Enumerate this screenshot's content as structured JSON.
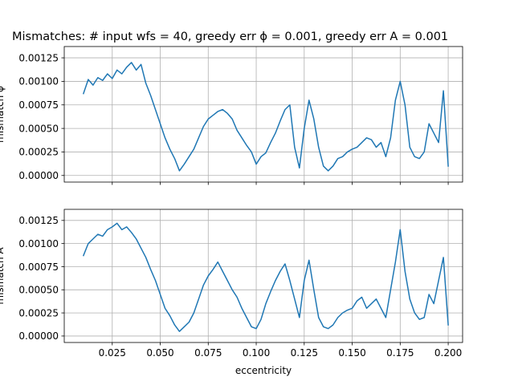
{
  "figure": {
    "title": "Mismatches: # input wfs = 40, greedy err ϕ = 0.001, greedy err A = 0.001"
  },
  "chart_data": [
    {
      "type": "line",
      "title": "Mismatches: # input wfs = 40, greedy err ϕ = 0.001, greedy err A = 0.001",
      "xlabel": "",
      "ylabel": "mismatch ϕ",
      "xlim": [
        0.0,
        0.2075
      ],
      "ylim": [
        -7e-05,
        0.00137
      ],
      "x_ticks": [
        0.025,
        0.05,
        0.075,
        0.1,
        0.125,
        0.15,
        0.175,
        0.2
      ],
      "x_ticklabels_visible": false,
      "y_ticks": [
        0.0,
        0.00025,
        0.0005,
        0.00075,
        0.001,
        0.00125
      ],
      "y_ticklabels": [
        "0.00000",
        "0.00025",
        "0.00050",
        "0.00075",
        "0.00100",
        "0.00125"
      ],
      "grid": true,
      "series": [
        {
          "color": "#1f77b4",
          "x": [
            0.01,
            0.0125,
            0.015,
            0.0175,
            0.02,
            0.0225,
            0.025,
            0.0275,
            0.03,
            0.0325,
            0.035,
            0.0375,
            0.04,
            0.0425,
            0.045,
            0.0475,
            0.05,
            0.0525,
            0.055,
            0.0575,
            0.06,
            0.0625,
            0.065,
            0.0675,
            0.07,
            0.0725,
            0.075,
            0.0775,
            0.08,
            0.0825,
            0.085,
            0.0875,
            0.09,
            0.0925,
            0.095,
            0.0975,
            0.1,
            0.1025,
            0.105,
            0.1075,
            0.11,
            0.1125,
            0.115,
            0.1175,
            0.12,
            0.1225,
            0.125,
            0.1275,
            0.13,
            0.1325,
            0.135,
            0.1375,
            0.14,
            0.1425,
            0.145,
            0.1475,
            0.15,
            0.1525,
            0.155,
            0.1575,
            0.16,
            0.1625,
            0.165,
            0.1675,
            0.17,
            0.1725,
            0.175,
            0.1775,
            0.18,
            0.1825,
            0.185,
            0.1875,
            0.19,
            0.1925,
            0.195,
            0.1975,
            0.2
          ],
          "y": [
            0.00087,
            0.00102,
            0.00096,
            0.00104,
            0.00101,
            0.00108,
            0.00103,
            0.00112,
            0.00108,
            0.00115,
            0.0012,
            0.00112,
            0.00118,
            0.00098,
            0.00085,
            0.0007,
            0.00055,
            0.0004,
            0.00028,
            0.00018,
            5e-05,
            0.00012,
            0.0002,
            0.00028,
            0.0004,
            0.00052,
            0.0006,
            0.00064,
            0.00068,
            0.0007,
            0.00066,
            0.0006,
            0.00048,
            0.0004,
            0.00032,
            0.00025,
            0.00012,
            0.0002,
            0.00024,
            0.00035,
            0.00045,
            0.00058,
            0.0007,
            0.00075,
            0.0003,
            8e-05,
            0.0005,
            0.0008,
            0.0006,
            0.0003,
            0.0001,
            5e-05,
            0.0001,
            0.00018,
            0.0002,
            0.00025,
            0.00028,
            0.0003,
            0.00035,
            0.0004,
            0.00038,
            0.0003,
            0.00035,
            0.0002,
            0.0004,
            0.0008,
            0.001,
            0.00075,
            0.0003,
            0.0002,
            0.00018,
            0.00025,
            0.00055,
            0.00045,
            0.00035,
            0.0009,
            0.0001
          ]
        }
      ]
    },
    {
      "type": "line",
      "title": "",
      "xlabel": "eccentricity",
      "ylabel": "mismatch A",
      "xlim": [
        0.0,
        0.2075
      ],
      "ylim": [
        -7e-05,
        0.00137
      ],
      "x_ticks": [
        0.025,
        0.05,
        0.075,
        0.1,
        0.125,
        0.15,
        0.175,
        0.2
      ],
      "x_ticklabels": [
        "0.025",
        "0.050",
        "0.075",
        "0.100",
        "0.125",
        "0.150",
        "0.175",
        "0.200"
      ],
      "y_ticks": [
        0.0,
        0.00025,
        0.0005,
        0.00075,
        0.001,
        0.00125
      ],
      "y_ticklabels": [
        "0.00000",
        "0.00025",
        "0.00050",
        "0.00075",
        "0.00100",
        "0.00125"
      ],
      "grid": true,
      "series": [
        {
          "color": "#1f77b4",
          "x": [
            0.01,
            0.0125,
            0.015,
            0.0175,
            0.02,
            0.0225,
            0.025,
            0.0275,
            0.03,
            0.0325,
            0.035,
            0.0375,
            0.04,
            0.0425,
            0.045,
            0.0475,
            0.05,
            0.0525,
            0.055,
            0.0575,
            0.06,
            0.0625,
            0.065,
            0.0675,
            0.07,
            0.0725,
            0.075,
            0.0775,
            0.08,
            0.0825,
            0.085,
            0.0875,
            0.09,
            0.0925,
            0.095,
            0.0975,
            0.1,
            0.1025,
            0.105,
            0.1075,
            0.11,
            0.1125,
            0.115,
            0.1175,
            0.12,
            0.1225,
            0.125,
            0.1275,
            0.13,
            0.1325,
            0.135,
            0.1375,
            0.14,
            0.1425,
            0.145,
            0.1475,
            0.15,
            0.1525,
            0.155,
            0.1575,
            0.16,
            0.1625,
            0.165,
            0.1675,
            0.17,
            0.1725,
            0.175,
            0.1775,
            0.18,
            0.1825,
            0.185,
            0.1875,
            0.19,
            0.1925,
            0.195,
            0.1975,
            0.2
          ],
          "y": [
            0.00087,
            0.001,
            0.00105,
            0.0011,
            0.00108,
            0.00115,
            0.00118,
            0.00122,
            0.00115,
            0.00118,
            0.00112,
            0.00105,
            0.00095,
            0.00085,
            0.00072,
            0.0006,
            0.00045,
            0.0003,
            0.00022,
            0.00012,
            5e-05,
            0.0001,
            0.00015,
            0.00025,
            0.0004,
            0.00055,
            0.00065,
            0.00072,
            0.0008,
            0.0007,
            0.0006,
            0.0005,
            0.00042,
            0.0003,
            0.0002,
            0.0001,
            8e-05,
            0.00018,
            0.00035,
            0.00048,
            0.0006,
            0.0007,
            0.00078,
            0.0006,
            0.0004,
            0.0002,
            0.0006,
            0.00082,
            0.0005,
            0.0002,
            0.0001,
            8e-05,
            0.00012,
            0.0002,
            0.00025,
            0.00028,
            0.0003,
            0.00038,
            0.00042,
            0.0003,
            0.00035,
            0.0004,
            0.0003,
            0.0002,
            0.0005,
            0.0008,
            0.00115,
            0.0007,
            0.0004,
            0.00025,
            0.00018,
            0.0002,
            0.00045,
            0.00035,
            0.0006,
            0.00085,
            0.00012
          ]
        }
      ]
    }
  ]
}
